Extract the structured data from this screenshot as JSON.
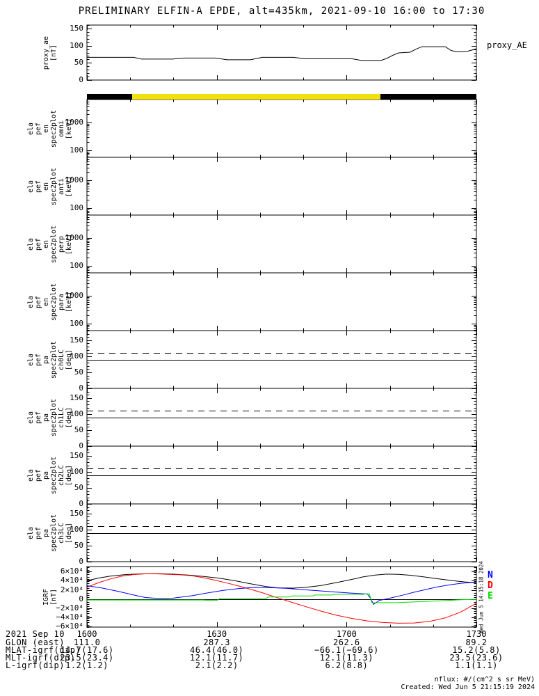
{
  "title": "PRELIMINARY ELFIN-A EPDE, alt=435km, 2021-09-10 16:00 to 17:30",
  "footer": {
    "nflux_note": "nflux: #/(cm^2 s sr MeV)",
    "created": "Created: Wed Jun  5 21:15:19 2024"
  },
  "sidestamp": "Wed Jun  5 14:15:18 2024",
  "colors": {
    "axis": "#000000",
    "bar_yellow": "#f0e10a",
    "bar_black": "#000000",
    "line_black": "#000000",
    "line_red": "#ff0000",
    "line_blue": "#0000ff",
    "line_green": "#00dd00"
  },
  "status_bar": {
    "segments": [
      {
        "color": "#000000",
        "from": 0.0,
        "to": 0.116
      },
      {
        "color": "#f0e10a",
        "from": 0.116,
        "to": 0.754
      },
      {
        "color": "#000000",
        "from": 0.754,
        "to": 1.0
      }
    ]
  },
  "xaxis": {
    "date_label": "2021 Sep 10",
    "major_tick_labels": [
      "1600",
      "1630",
      "1700",
      "1730"
    ],
    "major_fractions": [
      0,
      0.3333,
      0.6667,
      1
    ],
    "minor_fractions": [
      0.1111,
      0.2222,
      0.4444,
      0.5556,
      0.7778,
      0.8889
    ]
  },
  "ephemeris_rows": [
    {
      "label": "GLON (east)",
      "values": [
        "111.0",
        "287.3",
        "262.6",
        "89.2"
      ]
    },
    {
      "label": "MLAT-igrf(dip)",
      "values": [
        "14.7(17.6)",
        "46.4(46.0)",
        "−66.1(−69.6)",
        "15.2(5.8)"
      ]
    },
    {
      "label": "MLT-igrf(dip)",
      "values": [
        "23.5(23.4)",
        "12.1(11.7)",
        "12.1(11.3)",
        "23.5(23.6)"
      ]
    },
    {
      "label": "L-igrf(dip)",
      "values": [
        "1.2(1.2)",
        "2.1(2.2)",
        "6.2(8.8)",
        "1.1(1.1)"
      ]
    }
  ],
  "chart_data": [
    {
      "id": "proxy_ae",
      "type": "line",
      "ylabel_lines": [
        "proxy_ae",
        "[nT]"
      ],
      "annotation": "proxy_AE",
      "yscale": "linear",
      "ylim": [
        0,
        160
      ],
      "yminor_step": 10,
      "yticks": [
        {
          "v": 0,
          "label": "0"
        },
        {
          "v": 50,
          "label": "50"
        },
        {
          "v": 100,
          "label": "100"
        },
        {
          "v": 150,
          "label": "150"
        }
      ],
      "series": [
        {
          "name": "proxy_AE",
          "color": "#000000",
          "x": [
            0,
            0.12,
            0.14,
            0.22,
            0.25,
            0.33,
            0.36,
            0.42,
            0.45,
            0.53,
            0.56,
            0.68,
            0.705,
            0.755,
            0.77,
            0.785,
            0.8,
            0.83,
            0.845,
            0.86,
            0.92,
            0.935,
            0.95,
            0.975,
            1.0
          ],
          "y": [
            66,
            66,
            61,
            61,
            64,
            64,
            59,
            59,
            66,
            66,
            62,
            62,
            57,
            57,
            63,
            72,
            79,
            81,
            90,
            97,
            97,
            86,
            82,
            83,
            91
          ]
        }
      ]
    },
    {
      "id": "en_spec_omni",
      "type": "spectrogram",
      "ylabel_lines": [
        "ela",
        "pef",
        "en",
        "spec2plot",
        "omni",
        "[keV]"
      ],
      "yscale": "log",
      "ylim": [
        55,
        7000
      ],
      "yticks": [
        {
          "v": 100,
          "label": "100"
        },
        {
          "v": 1000,
          "label": "1000"
        }
      ],
      "series": []
    },
    {
      "id": "en_spec_anti",
      "type": "spectrogram",
      "ylabel_lines": [
        "ela",
        "pef",
        "en",
        "spec2plot",
        "anti",
        "[keV]"
      ],
      "yscale": "log",
      "ylim": [
        55,
        7000
      ],
      "yticks": [
        {
          "v": 100,
          "label": "100"
        },
        {
          "v": 1000,
          "label": "1000"
        }
      ],
      "series": []
    },
    {
      "id": "en_spec_perp",
      "type": "spectrogram",
      "ylabel_lines": [
        "ela",
        "pef",
        "en",
        "spec2plot",
        "perp",
        "[keV]"
      ],
      "yscale": "log",
      "ylim": [
        55,
        7000
      ],
      "yticks": [
        {
          "v": 100,
          "label": "100"
        },
        {
          "v": 1000,
          "label": "1000"
        }
      ],
      "series": []
    },
    {
      "id": "en_spec_para",
      "type": "spectrogram",
      "ylabel_lines": [
        "ela",
        "pef",
        "en",
        "spec2plot",
        "para",
        "[keV]"
      ],
      "yscale": "log",
      "ylim": [
        55,
        7000
      ],
      "yticks": [
        {
          "v": 100,
          "label": "100"
        },
        {
          "v": 1000,
          "label": "1000"
        }
      ],
      "series": []
    },
    {
      "id": "pa_spec_ch0",
      "type": "line",
      "ylabel_lines": [
        "ela",
        "pef",
        "pa",
        "spec2plot",
        "ch0LC",
        "[deg]"
      ],
      "yscale": "linear",
      "ylim": [
        0,
        180
      ],
      "yminor_step": 10,
      "yticks": [
        {
          "v": 0,
          "label": "0"
        },
        {
          "v": 50,
          "label": "50"
        },
        {
          "v": 100,
          "label": "100"
        },
        {
          "v": 150,
          "label": "150"
        }
      ],
      "ref_lines": [
        {
          "y": 90,
          "style": "solid",
          "color": "#000000"
        },
        {
          "y": 110,
          "style": "dashed",
          "color": "#000000"
        }
      ],
      "series": []
    },
    {
      "id": "pa_spec_ch1",
      "type": "line",
      "ylabel_lines": [
        "ela",
        "pef",
        "pa",
        "spec2plot",
        "ch1LC",
        "[deg]"
      ],
      "yscale": "linear",
      "ylim": [
        0,
        180
      ],
      "yminor_step": 10,
      "yticks": [
        {
          "v": 0,
          "label": "0"
        },
        {
          "v": 50,
          "label": "50"
        },
        {
          "v": 100,
          "label": "100"
        },
        {
          "v": 150,
          "label": "150"
        }
      ],
      "ref_lines": [
        {
          "y": 90,
          "style": "solid",
          "color": "#000000"
        },
        {
          "y": 110,
          "style": "dashed",
          "color": "#000000"
        }
      ],
      "series": []
    },
    {
      "id": "pa_spec_ch2",
      "type": "line",
      "ylabel_lines": [
        "ela",
        "pef",
        "pa",
        "spec2plot",
        "ch2LC",
        "[deg]"
      ],
      "yscale": "linear",
      "ylim": [
        0,
        180
      ],
      "yminor_step": 10,
      "yticks": [
        {
          "v": 0,
          "label": "0"
        },
        {
          "v": 50,
          "label": "50"
        },
        {
          "v": 100,
          "label": "100"
        },
        {
          "v": 150,
          "label": "150"
        }
      ],
      "ref_lines": [
        {
          "y": 90,
          "style": "solid",
          "color": "#000000"
        },
        {
          "y": 110,
          "style": "dashed",
          "color": "#000000"
        }
      ],
      "series": []
    },
    {
      "id": "pa_spec_ch3",
      "type": "line",
      "ylabel_lines": [
        "ela",
        "pef",
        "pa",
        "spec2plot",
        "ch3LC",
        "[deg]"
      ],
      "yscale": "linear",
      "ylim": [
        0,
        180
      ],
      "yminor_step": 10,
      "yticks": [
        {
          "v": 0,
          "label": "0"
        },
        {
          "v": 50,
          "label": "50"
        },
        {
          "v": 100,
          "label": "100"
        },
        {
          "v": 150,
          "label": "150"
        }
      ],
      "ref_lines": [
        {
          "y": 90,
          "style": "solid",
          "color": "#000000"
        },
        {
          "y": 110,
          "style": "dashed",
          "color": "#000000"
        }
      ],
      "series": []
    },
    {
      "id": "igrf",
      "type": "line",
      "ylabel_lines": [
        "IGRF",
        "[nT]"
      ],
      "yscale": "linear",
      "ylim": [
        -61000,
        71000
      ],
      "yminor_step": 5000,
      "yticks": [
        {
          "v": -60000,
          "label": "−6×10⁴"
        },
        {
          "v": -40000,
          "label": "−4×10⁴"
        },
        {
          "v": -20000,
          "label": "−2×10⁴"
        },
        {
          "v": 0,
          "label": "0"
        },
        {
          "v": 20000,
          "label": "2×10⁴"
        },
        {
          "v": 40000,
          "label": "4×10⁴"
        },
        {
          "v": 60000,
          "label": "6×10⁴"
        }
      ],
      "ref_lines": [
        {
          "y": 0,
          "style": "solid",
          "color": "#000000"
        }
      ],
      "legend": [
        {
          "label": "N",
          "color": "#0000ff"
        },
        {
          "label": "D",
          "color": "#ff0000"
        },
        {
          "label": "E",
          "color": "#00dd00"
        }
      ],
      "series": [
        {
          "name": "Btotal",
          "color": "#000000",
          "x": [
            0,
            0.03,
            0.06,
            0.1,
            0.14,
            0.18,
            0.22,
            0.26,
            0.3,
            0.34,
            0.38,
            0.42,
            0.46,
            0.49,
            0.53,
            0.56,
            0.6,
            0.64,
            0.68,
            0.71,
            0.74,
            0.77,
            0.8,
            0.83,
            0.86,
            0.9,
            0.94,
            0.97,
            1.0
          ],
          "y": [
            40000,
            46000,
            50000,
            53500,
            55000,
            55500,
            54500,
            52500,
            49500,
            45500,
            40000,
            33500,
            27500,
            24500,
            24000,
            25500,
            29500,
            36000,
            43000,
            48500,
            52500,
            54500,
            54000,
            52000,
            49000,
            44500,
            40000,
            37500,
            36000
          ]
        },
        {
          "name": "D",
          "color": "#ff0000",
          "x": [
            0,
            0.03,
            0.06,
            0.09,
            0.12,
            0.15,
            0.18,
            0.21,
            0.24,
            0.27,
            0.3,
            0.33,
            0.36,
            0.39,
            0.42,
            0.45,
            0.48,
            0.5,
            0.53,
            0.56,
            0.6,
            0.64,
            0.68,
            0.72,
            0.76,
            0.8,
            0.84,
            0.88,
            0.92,
            0.96,
            1.0
          ],
          "y": [
            26000,
            36000,
            44000,
            50000,
            53500,
            55000,
            55000,
            54000,
            53000,
            51000,
            46500,
            41000,
            35000,
            28500,
            21500,
            14000,
            5500,
            0,
            -8000,
            -16000,
            -26000,
            -35000,
            -42000,
            -47500,
            -51000,
            -52500,
            -52000,
            -48500,
            -41000,
            -28000,
            -9000
          ]
        },
        {
          "name": "N",
          "color": "#0000ff",
          "x": [
            0,
            0.04,
            0.08,
            0.12,
            0.15,
            0.18,
            0.22,
            0.27,
            0.31,
            0.35,
            0.39,
            0.43,
            0.47,
            0.51,
            0.55,
            0.59,
            0.63,
            0.67,
            0.7,
            0.72,
            0.728,
            0.736,
            0.75,
            0.78,
            0.81,
            0.84,
            0.87,
            0.9,
            0.93,
            0.96,
            1.0
          ],
          "y": [
            29500,
            24000,
            17000,
            9000,
            3500,
            1500,
            2000,
            7500,
            13500,
            19000,
            23000,
            25500,
            25000,
            23500,
            21000,
            18500,
            16000,
            13500,
            12000,
            11000,
            2000,
            -11500,
            -3000,
            2500,
            8500,
            15000,
            21000,
            26500,
            31000,
            34500,
            37500
          ]
        },
        {
          "name": "E",
          "color": "#00dd00",
          "x": [
            0,
            0.3,
            0.305,
            0.335,
            0.34,
            0.46,
            0.465,
            0.52,
            0.525,
            0.58,
            0.585,
            0.63,
            0.635,
            0.71,
            0.715,
            0.725,
            0.732,
            0.8,
            0.86,
            0.91,
            0.96,
            1.0
          ],
          "y": [
            -2000,
            -2000,
            -2500,
            -2500,
            1000,
            1000,
            4500,
            4500,
            7000,
            7000,
            9000,
            9000,
            10500,
            10500,
            11500,
            11500,
            -8000,
            -7500,
            -5500,
            -3500,
            -1500,
            -500
          ]
        }
      ]
    }
  ]
}
